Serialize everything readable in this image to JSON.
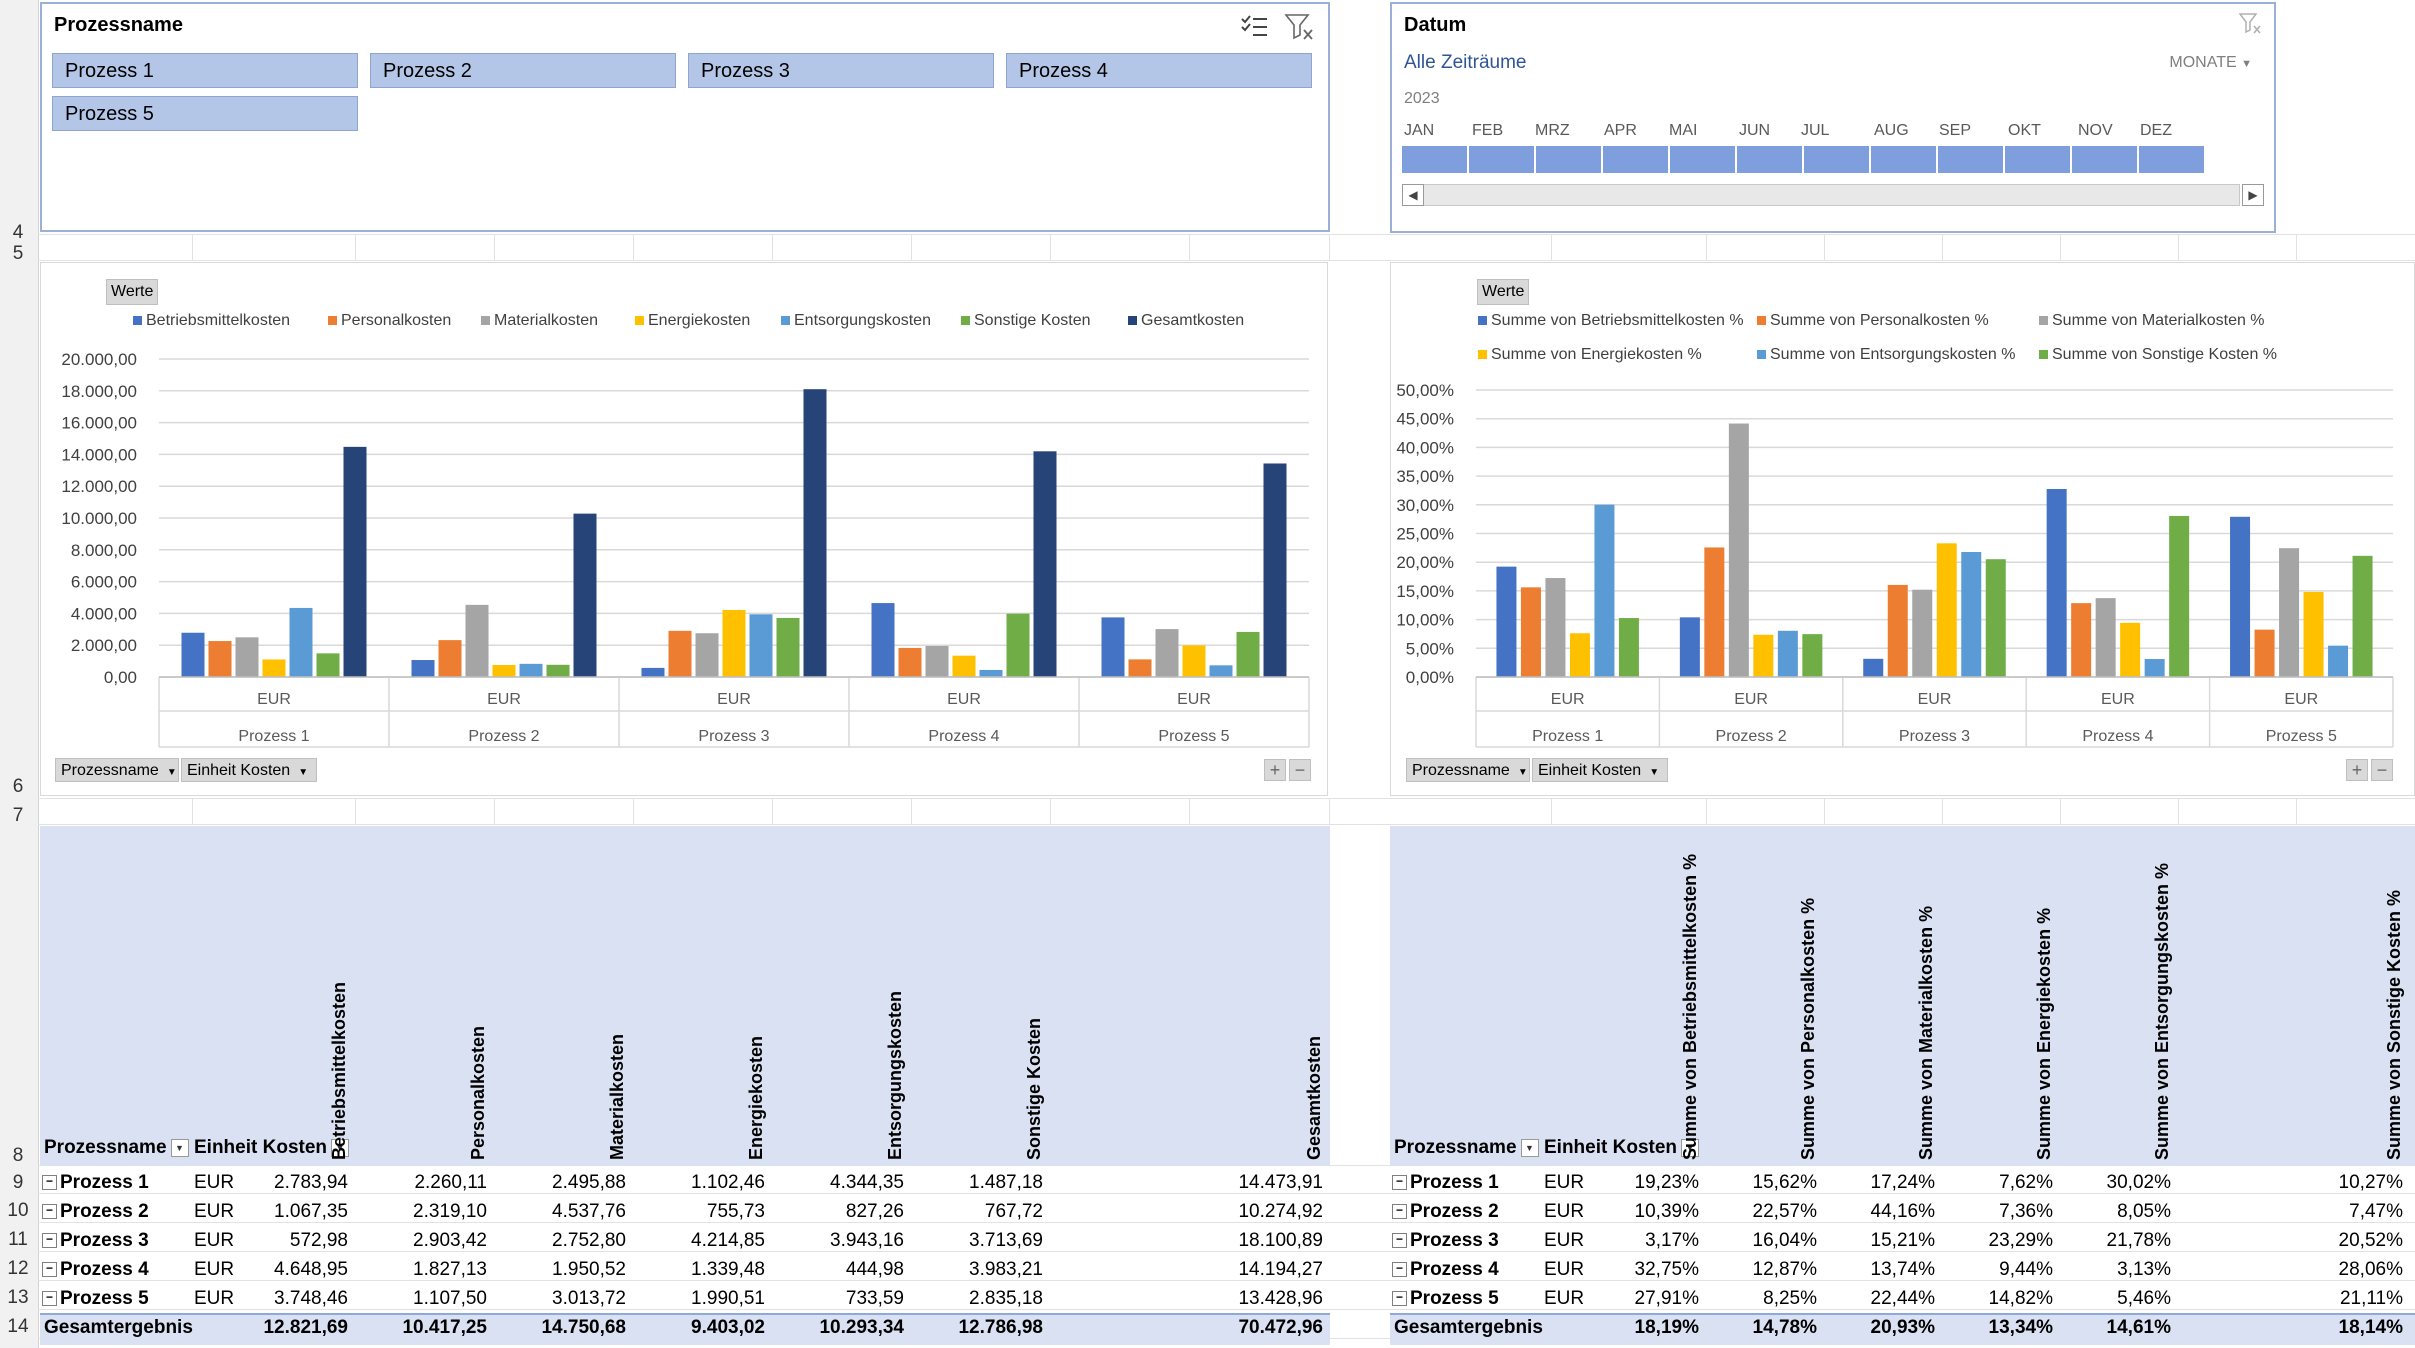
{
  "row_numbers": [
    {
      "label": "4",
      "top": 222
    },
    {
      "label": "5",
      "top": 243
    },
    {
      "label": "6",
      "top": 776
    },
    {
      "label": "7",
      "top": 805
    },
    {
      "label": "8",
      "top": 1145
    },
    {
      "label": "9",
      "top": 1172
    },
    {
      "label": "10",
      "top": 1200
    },
    {
      "label": "11",
      "top": 1229
    },
    {
      "label": "12",
      "top": 1258
    },
    {
      "label": "13",
      "top": 1287
    },
    {
      "label": "14",
      "top": 1316
    }
  ],
  "slicer_process": {
    "title": "Prozessname",
    "items": [
      "Prozess 1",
      "Prozess 2",
      "Prozess 3",
      "Prozess 4",
      "Prozess 5"
    ]
  },
  "slicer_date": {
    "title": "Datum",
    "all_periods": "Alle Zeiträume",
    "level": "MONATE",
    "year": "2023",
    "months": [
      "JAN",
      "FEB",
      "MRZ",
      "APR",
      "MAI",
      "JUN",
      "JUL",
      "AUG",
      "SEP",
      "OKT",
      "NOV",
      "DEZ"
    ]
  },
  "chart_controls": {
    "values_button": "Werte",
    "field_process": "Prozessname",
    "field_unit": "Einheit Kosten",
    "expand": "+",
    "collapse": "−"
  },
  "colors": {
    "series": [
      "#4472c4",
      "#ed7d31",
      "#a5a5a5",
      "#ffc000",
      "#5b9bd5",
      "#70ad47",
      "#264478"
    ],
    "slicer_selected": "#b4c6e7",
    "pivot_header": "#d9e1f2"
  },
  "chart_data": [
    {
      "type": "bar",
      "categories": [
        "Prozess 1",
        "Prozess 2",
        "Prozess 3",
        "Prozess 4",
        "Prozess 5"
      ],
      "category_sublabel": "EUR",
      "series": [
        {
          "name": "Betriebsmittelkosten",
          "values": [
            2783.94,
            1067.35,
            572.98,
            4648.95,
            3748.46
          ]
        },
        {
          "name": "Personalkosten",
          "values": [
            2260.11,
            2319.1,
            2903.42,
            1827.13,
            1107.5
          ]
        },
        {
          "name": "Materialkosten",
          "values": [
            2495.88,
            4537.76,
            2752.8,
            1950.52,
            3013.72
          ]
        },
        {
          "name": "Energiekosten",
          "values": [
            1102.46,
            755.73,
            4214.85,
            1339.48,
            1990.51
          ]
        },
        {
          "name": "Entsorgungskosten",
          "values": [
            4344.35,
            827.26,
            3943.16,
            444.98,
            733.59
          ]
        },
        {
          "name": "Sonstige Kosten",
          "values": [
            1487.18,
            767.72,
            3713.69,
            3983.21,
            2835.18
          ]
        },
        {
          "name": "Gesamtkosten",
          "values": [
            14473.91,
            10274.92,
            18100.89,
            14194.27,
            13428.96
          ]
        }
      ],
      "ylim": [
        0,
        20000
      ],
      "y_ticks": [
        "0,00",
        "2.000,00",
        "4.000,00",
        "6.000,00",
        "8.000,00",
        "10.000,00",
        "12.000,00",
        "14.000,00",
        "16.000,00",
        "18.000,00",
        "20.000,00"
      ],
      "legend": "top",
      "grid": true
    },
    {
      "type": "bar",
      "categories": [
        "Prozess 1",
        "Prozess 2",
        "Prozess 3",
        "Prozess 4",
        "Prozess 5"
      ],
      "category_sublabel": "EUR",
      "series": [
        {
          "name": "Summe von Betriebsmittelkosten %",
          "values": [
            19.23,
            10.39,
            3.17,
            32.75,
            27.91
          ]
        },
        {
          "name": "Summe von Personalkosten %",
          "values": [
            15.62,
            22.57,
            16.04,
            12.87,
            8.25
          ]
        },
        {
          "name": "Summe von Materialkosten %",
          "values": [
            17.24,
            44.16,
            15.21,
            13.74,
            22.44
          ]
        },
        {
          "name": "Summe von Energiekosten %",
          "values": [
            7.62,
            7.36,
            23.29,
            9.44,
            14.82
          ]
        },
        {
          "name": "Summe von Entsorgungskosten %",
          "values": [
            30.02,
            8.05,
            21.78,
            3.13,
            5.46
          ]
        },
        {
          "name": "Summe von Sonstige Kosten %",
          "values": [
            10.27,
            7.47,
            20.52,
            28.06,
            21.11
          ]
        }
      ],
      "ylim": [
        0,
        50
      ],
      "y_ticks": [
        "0,00%",
        "5,00%",
        "10,00%",
        "15,00%",
        "20,00%",
        "25,00%",
        "30,00%",
        "35,00%",
        "40,00%",
        "45,00%",
        "50,00%"
      ],
      "legend": "top",
      "grid": true
    }
  ],
  "pivot_left": {
    "row_field": "Prozessname",
    "unit_field": "Einheit Kosten",
    "columns": [
      "Betriebsmittelkosten",
      "Personalkosten",
      "Materialkosten",
      "Energiekosten",
      "Entsorgungskosten",
      "Sonstige Kosten",
      "Gesamtkosten"
    ],
    "rows": [
      {
        "name": "Prozess 1",
        "unit": "EUR",
        "values": [
          "2.783,94",
          "2.260,11",
          "2.495,88",
          "1.102,46",
          "4.344,35",
          "1.487,18",
          "14.473,91"
        ]
      },
      {
        "name": "Prozess 2",
        "unit": "EUR",
        "values": [
          "1.067,35",
          "2.319,10",
          "4.537,76",
          "755,73",
          "827,26",
          "767,72",
          "10.274,92"
        ]
      },
      {
        "name": "Prozess 3",
        "unit": "EUR",
        "values": [
          "572,98",
          "2.903,42",
          "2.752,80",
          "4.214,85",
          "3.943,16",
          "3.713,69",
          "18.100,89"
        ]
      },
      {
        "name": "Prozess 4",
        "unit": "EUR",
        "values": [
          "4.648,95",
          "1.827,13",
          "1.950,52",
          "1.339,48",
          "444,98",
          "3.983,21",
          "14.194,27"
        ]
      },
      {
        "name": "Prozess 5",
        "unit": "EUR",
        "values": [
          "3.748,46",
          "1.107,50",
          "3.013,72",
          "1.990,51",
          "733,59",
          "2.835,18",
          "13.428,96"
        ]
      }
    ],
    "total_label": "Gesamtergebnis",
    "totals": [
      "12.821,69",
      "10.417,25",
      "14.750,68",
      "9.403,02",
      "10.293,34",
      "12.786,98",
      "70.472,96"
    ]
  },
  "pivot_right": {
    "row_field": "Prozessname",
    "unit_field": "Einheit Kosten",
    "columns": [
      "Summe von Betriebsmittelkosten %",
      "Summe von Personalkosten %",
      "Summe von Materialkosten %",
      "Summe von Energiekosten %",
      "Summe von Entsorgungskosten %",
      "Summe von Sonstige Kosten %"
    ],
    "rows": [
      {
        "name": "Prozess 1",
        "unit": "EUR",
        "values": [
          "19,23%",
          "15,62%",
          "17,24%",
          "7,62%",
          "30,02%",
          "10,27%"
        ]
      },
      {
        "name": "Prozess 2",
        "unit": "EUR",
        "values": [
          "10,39%",
          "22,57%",
          "44,16%",
          "7,36%",
          "8,05%",
          "7,47%"
        ]
      },
      {
        "name": "Prozess 3",
        "unit": "EUR",
        "values": [
          "3,17%",
          "16,04%",
          "15,21%",
          "23,29%",
          "21,78%",
          "20,52%"
        ]
      },
      {
        "name": "Prozess 4",
        "unit": "EUR",
        "values": [
          "32,75%",
          "12,87%",
          "13,74%",
          "9,44%",
          "3,13%",
          "28,06%"
        ]
      },
      {
        "name": "Prozess 5",
        "unit": "EUR",
        "values": [
          "27,91%",
          "8,25%",
          "22,44%",
          "14,82%",
          "5,46%",
          "21,11%"
        ]
      }
    ],
    "total_label": "Gesamtergebnis",
    "totals": [
      "18,19%",
      "14,78%",
      "20,93%",
      "13,34%",
      "14,61%",
      "18,14%"
    ]
  }
}
